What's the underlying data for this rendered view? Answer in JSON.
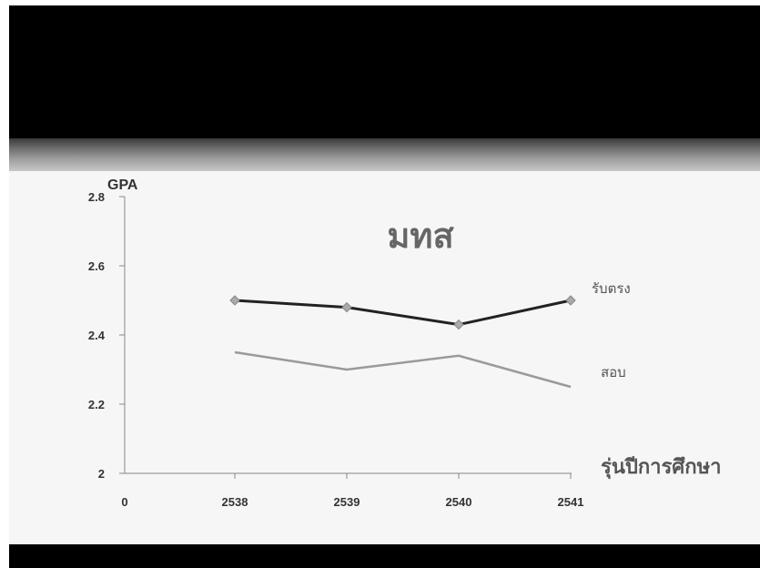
{
  "chart_data": {
    "type": "line",
    "title": "มทส",
    "ylabel": "GPA",
    "xlabel": "รุ่นปีการศึกษา",
    "origin_label": "0",
    "categories": [
      "2538",
      "2539",
      "2540",
      "2541"
    ],
    "ylim": [
      2,
      2.8
    ],
    "yticks": [
      "2",
      "2.2",
      "2.4",
      "2.6",
      "2.8"
    ],
    "grid": false,
    "series": [
      {
        "name": "รับตรง",
        "values": [
          2.5,
          2.48,
          2.43,
          2.5
        ],
        "color": "#222222",
        "marker": "diamond"
      },
      {
        "name": "สอบ",
        "values": [
          2.35,
          2.3,
          2.34,
          2.25
        ],
        "color": "#9a9a9a",
        "marker": "none"
      }
    ]
  }
}
